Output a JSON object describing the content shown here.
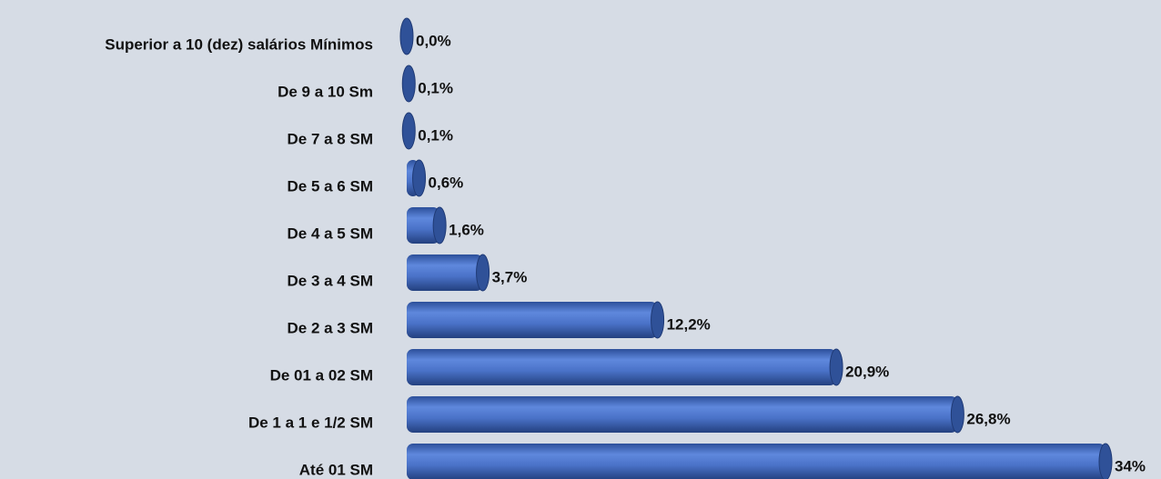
{
  "chart_data": {
    "type": "bar",
    "orientation": "horizontal",
    "categories": [
      "Superior a 10 (dez) salários Mínimos",
      "De 9 a 10 Sm",
      "De 7 a 8 SM",
      "De 5 a 6 SM",
      "De 4 a 5 SM",
      "De 3 a 4 SM",
      "De 2 a 3 SM",
      "De 01 a 02 SM",
      "De 1 a 1 e 1/2 SM",
      "Até 01 SM"
    ],
    "values": [
      0,
      0.1,
      0.1,
      0.6,
      1.6,
      3.7,
      12.2,
      20.9,
      26.8,
      34
    ],
    "value_labels": [
      "0,0%",
      "0,1%",
      "0,1%",
      "0,6%",
      "1,6%",
      "3,7%",
      "12,2%",
      "20,9%",
      "26,8%",
      "34%"
    ],
    "color": "#4a72c8"
  }
}
